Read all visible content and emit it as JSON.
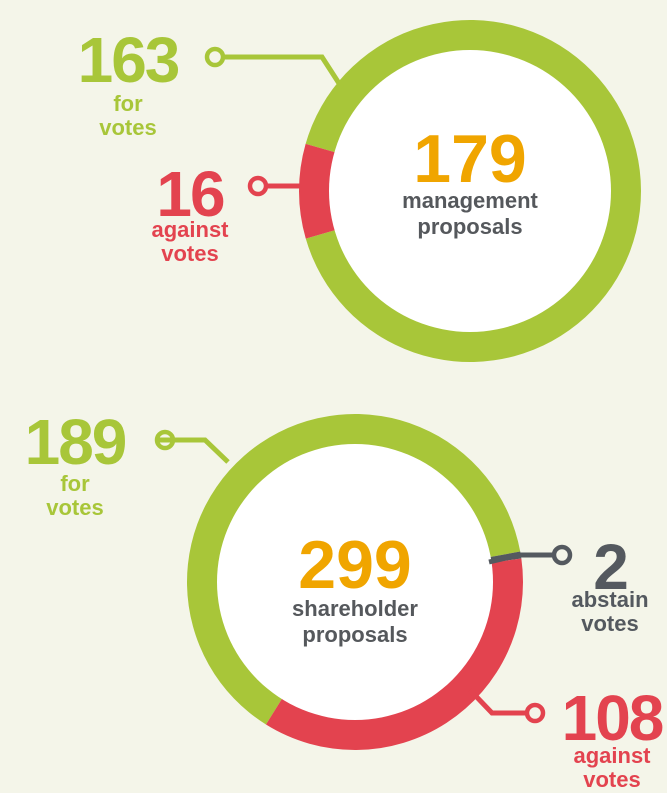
{
  "chart_data": [
    {
      "type": "donut",
      "total": 179,
      "total_color": "#f0a500",
      "center_label": "management proposals",
      "categories": [
        "for votes",
        "against votes"
      ],
      "values": [
        163,
        16
      ],
      "colors": [
        "#a8c639",
        "#e3434f"
      ]
    },
    {
      "type": "donut",
      "total": 299,
      "total_color": "#f0a500",
      "center_label": "shareholder proposals",
      "categories": [
        "for votes",
        "abstain votes",
        "against votes"
      ],
      "values": [
        189,
        2,
        108
      ],
      "colors": [
        "#a8c639",
        "#54595f",
        "#e3434f"
      ]
    }
  ]
}
